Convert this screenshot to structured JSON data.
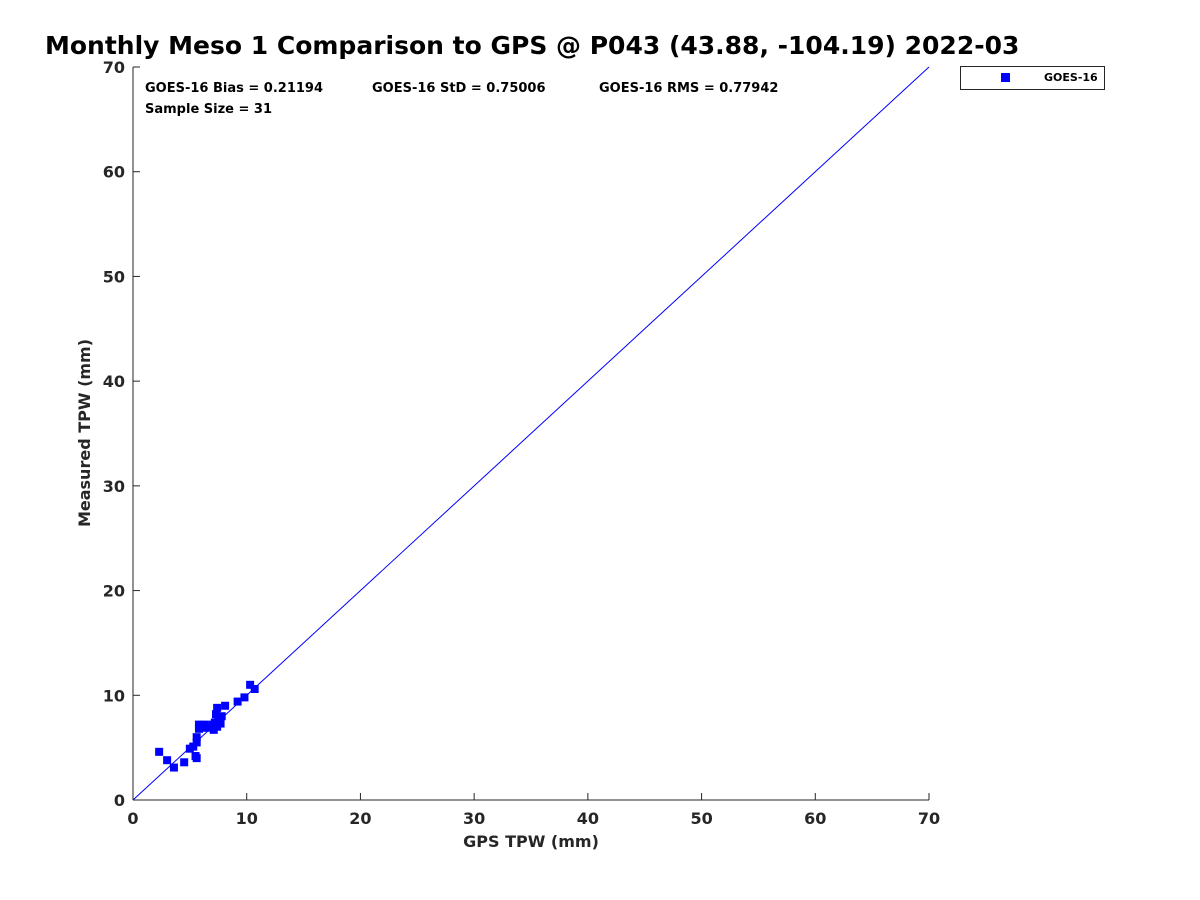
{
  "chart_data": {
    "type": "scatter",
    "title": "Monthly Meso 1 Comparison to GPS @ P043 (43.88, -104.19) 2022-03",
    "xlabel": "GPS TPW (mm)",
    "ylabel": "Measured TPW (mm)",
    "xlim": [
      0,
      70
    ],
    "ylim": [
      0,
      70
    ],
    "xticks": [
      0,
      10,
      20,
      30,
      40,
      50,
      60,
      70
    ],
    "yticks": [
      0,
      10,
      20,
      30,
      40,
      50,
      60,
      70
    ],
    "grid": false,
    "legend_position": "outside-top-right",
    "reference_line": {
      "x": [
        0,
        70
      ],
      "y": [
        0,
        70
      ],
      "color": "#0000ff"
    },
    "stats": [
      "GOES-16 Bias = 0.21194",
      "GOES-16 StD = 0.75006",
      "GOES-16 RMS = 0.77942",
      "Sample Size = 31"
    ],
    "series": [
      {
        "name": "GOES-16",
        "color": "#0000ff",
        "marker": "square",
        "x": [
          2.3,
          3.0,
          3.6,
          4.5,
          5.0,
          5.3,
          5.5,
          5.6,
          5.6,
          5.8,
          5.8,
          6.0,
          6.1,
          6.3,
          6.5,
          6.7,
          7.0,
          7.1,
          7.2,
          7.3,
          7.4,
          7.4,
          7.5,
          7.7,
          7.8,
          8.1,
          9.2,
          9.8,
          10.3,
          10.7,
          5.6
        ],
        "y": [
          4.6,
          3.8,
          3.1,
          3.6,
          4.9,
          5.1,
          4.2,
          6.0,
          5.5,
          7.2,
          6.8,
          7.1,
          6.9,
          7.2,
          7.0,
          6.9,
          7.2,
          6.7,
          7.4,
          8.2,
          8.8,
          7.0,
          7.6,
          7.3,
          8.0,
          9.0,
          9.4,
          9.8,
          11.0,
          10.6,
          4.0
        ]
      }
    ]
  }
}
